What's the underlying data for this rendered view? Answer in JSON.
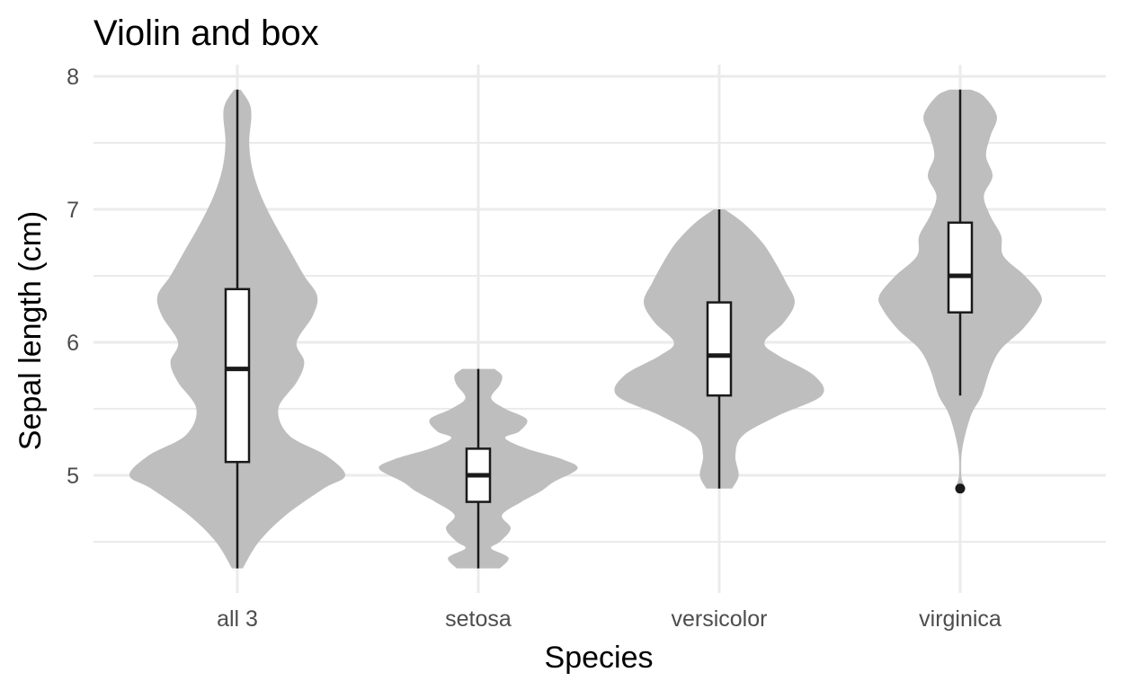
{
  "chart_data": {
    "type": "violin",
    "title": "Violin and box",
    "xlabel": "Species",
    "ylabel": "Sepal length (cm)",
    "categories": [
      "all 3",
      "setosa",
      "versicolor",
      "virginica"
    ],
    "ylim": [
      4.15,
      8.1
    ],
    "yticks": [
      5,
      6,
      7,
      8
    ],
    "yticklabels": [
      "5",
      "6",
      "7",
      "8"
    ],
    "grid": true,
    "colors": {
      "violin_fill": "#bebebe",
      "box_fill": "#ffffff",
      "box_stroke": "#1a1a1a",
      "grid": "#ebebeb"
    },
    "series": [
      {
        "category": "all 3",
        "min": 4.3,
        "q1": 5.1,
        "median": 5.8,
        "q3": 6.4,
        "max": 7.9,
        "outliers": [],
        "density": [
          [
            4.3,
            0.05
          ],
          [
            4.5,
            0.2
          ],
          [
            4.7,
            0.45
          ],
          [
            4.9,
            0.8
          ],
          [
            5.0,
            1.0
          ],
          [
            5.15,
            0.82
          ],
          [
            5.3,
            0.48
          ],
          [
            5.5,
            0.38
          ],
          [
            5.7,
            0.55
          ],
          [
            5.85,
            0.62
          ],
          [
            6.0,
            0.55
          ],
          [
            6.2,
            0.7
          ],
          [
            6.35,
            0.74
          ],
          [
            6.5,
            0.62
          ],
          [
            6.7,
            0.48
          ],
          [
            6.9,
            0.34
          ],
          [
            7.1,
            0.22
          ],
          [
            7.3,
            0.14
          ],
          [
            7.5,
            0.11
          ],
          [
            7.7,
            0.13
          ],
          [
            7.8,
            0.11
          ],
          [
            7.9,
            0.03
          ]
        ]
      },
      {
        "category": "setosa",
        "min": 4.3,
        "q1": 4.8,
        "median": 5.0,
        "q3": 5.2,
        "max": 5.8,
        "outliers": [],
        "density": [
          [
            4.3,
            0.2
          ],
          [
            4.38,
            0.28
          ],
          [
            4.45,
            0.12
          ],
          [
            4.5,
            0.2
          ],
          [
            4.6,
            0.3
          ],
          [
            4.7,
            0.22
          ],
          [
            4.8,
            0.4
          ],
          [
            4.88,
            0.58
          ],
          [
            4.95,
            0.7
          ],
          [
            5.05,
            0.92
          ],
          [
            5.12,
            0.78
          ],
          [
            5.2,
            0.45
          ],
          [
            5.28,
            0.25
          ],
          [
            5.33,
            0.38
          ],
          [
            5.42,
            0.45
          ],
          [
            5.5,
            0.25
          ],
          [
            5.58,
            0.12
          ],
          [
            5.68,
            0.2
          ],
          [
            5.75,
            0.22
          ],
          [
            5.8,
            0.15
          ]
        ]
      },
      {
        "category": "versicolor",
        "min": 4.9,
        "q1": 5.6,
        "median": 5.9,
        "q3": 6.3,
        "max": 7.0,
        "outliers": [],
        "density": [
          [
            4.9,
            0.12
          ],
          [
            5.0,
            0.18
          ],
          [
            5.15,
            0.15
          ],
          [
            5.3,
            0.22
          ],
          [
            5.45,
            0.55
          ],
          [
            5.6,
            0.95
          ],
          [
            5.75,
            0.88
          ],
          [
            5.9,
            0.55
          ],
          [
            6.0,
            0.42
          ],
          [
            6.15,
            0.6
          ],
          [
            6.3,
            0.7
          ],
          [
            6.45,
            0.62
          ],
          [
            6.6,
            0.52
          ],
          [
            6.75,
            0.4
          ],
          [
            6.9,
            0.22
          ],
          [
            7.0,
            0.05
          ]
        ]
      },
      {
        "category": "virginica",
        "min": 5.6,
        "q1": 6.225,
        "median": 6.5,
        "q3": 6.9,
        "max": 7.9,
        "outliers": [
          4.9
        ],
        "density": [
          [
            4.9,
            0.05
          ],
          [
            5.0,
            0.01
          ],
          [
            5.2,
            0.02
          ],
          [
            5.45,
            0.1
          ],
          [
            5.6,
            0.2
          ],
          [
            5.8,
            0.28
          ],
          [
            5.95,
            0.38
          ],
          [
            6.1,
            0.58
          ],
          [
            6.25,
            0.72
          ],
          [
            6.35,
            0.75
          ],
          [
            6.5,
            0.6
          ],
          [
            6.65,
            0.4
          ],
          [
            6.8,
            0.38
          ],
          [
            6.95,
            0.28
          ],
          [
            7.1,
            0.22
          ],
          [
            7.25,
            0.3
          ],
          [
            7.4,
            0.24
          ],
          [
            7.55,
            0.28
          ],
          [
            7.7,
            0.34
          ],
          [
            7.85,
            0.22
          ],
          [
            7.9,
            0.1
          ]
        ]
      }
    ]
  }
}
